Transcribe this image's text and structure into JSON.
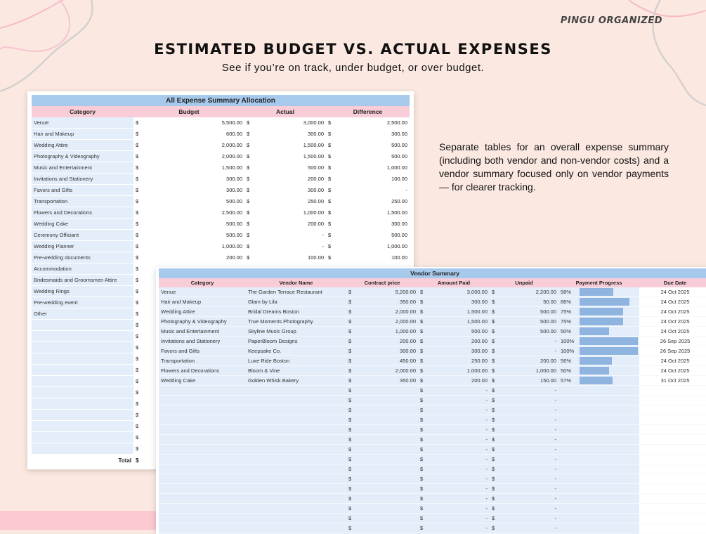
{
  "brand": "PINGU ORGANIZED",
  "title": "ESTIMATED BUDGET VS. ACTUAL EXPENSES",
  "subtitle": "See if you’re on track, under budget, or over budget.",
  "description": "Separate tables for an overall expense summary (including both vendor and non-vendor costs) and a vendor summary focused only on vendor payments — for clearer tracking.",
  "colors": {
    "background": "#fbe9e1",
    "header_blue": "#a7c9ec",
    "header_pink": "#f9cdd8",
    "cell_blue": "#e3eefa",
    "bar": "#8fb4df"
  },
  "expense": {
    "title": "All Expense Summary Allocation",
    "headers": [
      "Category",
      "Budget",
      "Actual",
      "Difference"
    ],
    "currency": "$",
    "rows": [
      {
        "category": "Venue",
        "budget": "5,500.00",
        "actual": "3,000.00",
        "difference": "2,500.00"
      },
      {
        "category": "Hair and Makeup",
        "budget": "600.00",
        "actual": "300.00",
        "difference": "300.00"
      },
      {
        "category": "Wedding Attire",
        "budget": "2,000.00",
        "actual": "1,500.00",
        "difference": "500.00"
      },
      {
        "category": "Photography & Videography",
        "budget": "2,000.00",
        "actual": "1,500.00",
        "difference": "500.00"
      },
      {
        "category": "Music and Entertainment",
        "budget": "1,500.00",
        "actual": "500.00",
        "difference": "1,000.00"
      },
      {
        "category": "Invitations and Stationery",
        "budget": "300.00",
        "actual": "200.00",
        "difference": "100.00"
      },
      {
        "category": "Favors and Gifts",
        "budget": "300.00",
        "actual": "300.00",
        "difference": "-"
      },
      {
        "category": "Transportation",
        "budget": "500.00",
        "actual": "250.00",
        "difference": "250.00"
      },
      {
        "category": "Flowers and Decorations",
        "budget": "2,500.00",
        "actual": "1,000.00",
        "difference": "1,500.00"
      },
      {
        "category": "Wedding Cake",
        "budget": "500.00",
        "actual": "200.00",
        "difference": "300.00"
      },
      {
        "category": "Ceremony Officiant",
        "budget": "500.00",
        "actual": "-",
        "difference": "500.00"
      },
      {
        "category": "Wedding Planner",
        "budget": "1,000.00",
        "actual": "-",
        "difference": "1,000.00"
      },
      {
        "category": "Pre-wedding documents",
        "budget": "200.00",
        "actual": "100.00",
        "difference": "100.00"
      },
      {
        "category": "Accommodation",
        "budget": "",
        "actual": "",
        "difference": ""
      },
      {
        "category": "Bridesmaids and Groomsmen Attire",
        "budget": "",
        "actual": "",
        "difference": ""
      },
      {
        "category": "Wedding Rings",
        "budget": "",
        "actual": "",
        "difference": ""
      },
      {
        "category": "Pre-wedding event",
        "budget": "",
        "actual": "",
        "difference": ""
      },
      {
        "category": "Other",
        "budget": "",
        "actual": "",
        "difference": ""
      }
    ],
    "total_label": "Total"
  },
  "vendor": {
    "title": "Vendor Summary",
    "headers": [
      "Category",
      "Vendor Name",
      "Contract price",
      "Amount Paid",
      "Unpaid",
      "Payment Progress",
      "Due Date"
    ],
    "currency": "$",
    "rows": [
      {
        "category": "Venue",
        "vendor": "The Garden Terrace Restaurant",
        "contract": "5,200.00",
        "paid": "3,000.00",
        "unpaid": "2,200.00",
        "progress": 58,
        "progress_label": "58%",
        "due": "24 Oct 2025"
      },
      {
        "category": "Hair and Makeup",
        "vendor": "Glam by Lila",
        "contract": "350.00",
        "paid": "300.00",
        "unpaid": "50.00",
        "progress": 86,
        "progress_label": "86%",
        "due": "24 Oct 2025"
      },
      {
        "category": "Wedding Attire",
        "vendor": "Bridal Dreams Boston",
        "contract": "2,000.00",
        "paid": "1,500.00",
        "unpaid": "500.00",
        "progress": 75,
        "progress_label": "75%",
        "due": "24 Oct 2025"
      },
      {
        "category": "Photography & Videography",
        "vendor": "True Moments Photography",
        "contract": "2,000.00",
        "paid": "1,500.00",
        "unpaid": "500.00",
        "progress": 75,
        "progress_label": "75%",
        "due": "24 Oct 2025"
      },
      {
        "category": "Music and Entertainment",
        "vendor": "Skyline Music Group",
        "contract": "1,000.00",
        "paid": "500.00",
        "unpaid": "500.00",
        "progress": 50,
        "progress_label": "50%",
        "due": "24 Oct 2025"
      },
      {
        "category": "Invitations and Stationery",
        "vendor": "PaperBloom Designs",
        "contract": "200.00",
        "paid": "200.00",
        "unpaid": "-",
        "progress": 100,
        "progress_label": "100%",
        "due": "26 Sep 2025"
      },
      {
        "category": "Favors and Gifts",
        "vendor": "Keepsake Co.",
        "contract": "300.00",
        "paid": "300.00",
        "unpaid": "-",
        "progress": 100,
        "progress_label": "100%",
        "due": "26 Sep 2025"
      },
      {
        "category": "Transportation",
        "vendor": "Luxe Ride Boston",
        "contract": "450.00",
        "paid": "250.00",
        "unpaid": "200.00",
        "progress": 56,
        "progress_label": "56%",
        "due": "24 Oct 2025"
      },
      {
        "category": "Flowers and Decorations",
        "vendor": "Bloom & Vine",
        "contract": "2,000.00",
        "paid": "1,000.00",
        "unpaid": "1,000.00",
        "progress": 50,
        "progress_label": "50%",
        "due": "24 Oct 2025"
      },
      {
        "category": "Wedding Cake",
        "vendor": "Golden Whisk Bakery",
        "contract": "350.00",
        "paid": "200.00",
        "unpaid": "150.00",
        "progress": 57,
        "progress_label": "57%",
        "due": "31 Oct 2025"
      }
    ],
    "empty_row": {
      "paid": "-",
      "unpaid": "-"
    }
  }
}
